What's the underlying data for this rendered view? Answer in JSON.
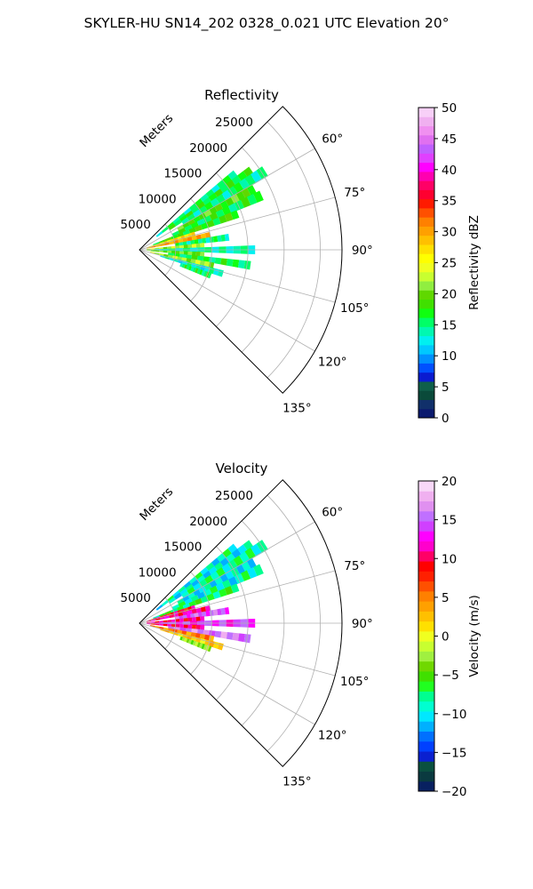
{
  "figure": {
    "title": "SKYLER-HU  SN14_202  0328_0.021 UTC Elevation 20°"
  },
  "chart_data": [
    {
      "type": "heatmap",
      "title": "Reflectivity",
      "projection": "polar sector",
      "radial_label": "Meters",
      "radial_ticks": [
        5000,
        10000,
        15000,
        20000,
        25000
      ],
      "radial_tick_labels": [
        "5000",
        "10000",
        "15000",
        "20000",
        "25000"
      ],
      "rlim": [
        0,
        28000
      ],
      "theta_ticks": [
        60,
        75,
        90,
        105,
        120,
        135
      ],
      "theta_tick_labels": [
        "60°",
        "75°",
        "90°",
        "105°",
        "120°",
        "135°"
      ],
      "theta_range_deg": [
        45,
        135
      ],
      "grid": true,
      "colorbar": {
        "label": "Reflectivity dBZ",
        "range": [
          0,
          50
        ],
        "ticks": [
          0,
          5,
          10,
          15,
          20,
          25,
          30,
          35,
          40,
          45,
          50
        ],
        "tick_labels": [
          "0",
          "5",
          "10",
          "15",
          "20",
          "25",
          "30",
          "35",
          "40",
          "45",
          "50"
        ]
      },
      "field_blobs": [
        {
          "az": 52,
          "r0": 3000,
          "r1": 17000,
          "value": 15
        },
        {
          "az": 55,
          "r0": 5000,
          "r1": 19000,
          "value": 17
        },
        {
          "az": 58,
          "r0": 7000,
          "r1": 20500,
          "value": 15
        },
        {
          "az": 62,
          "r0": 6000,
          "r1": 18000,
          "value": 19
        },
        {
          "az": 66,
          "r0": 5000,
          "r1": 18500,
          "value": 16
        },
        {
          "az": 70,
          "r0": 2000,
          "r1": 14500,
          "value": 18
        },
        {
          "az": 74,
          "r0": 1000,
          "r1": 8000,
          "value": 27
        },
        {
          "az": 78,
          "r0": 1000,
          "r1": 10000,
          "value": 30
        },
        {
          "az": 82,
          "r0": 5000,
          "r1": 12500,
          "value": 15
        },
        {
          "az": 86,
          "r0": 1000,
          "r1": 9000,
          "value": 22
        },
        {
          "az": 90,
          "r0": 2000,
          "r1": 16000,
          "value": 14
        },
        {
          "az": 94,
          "r0": 1000,
          "r1": 9000,
          "value": 20
        },
        {
          "az": 98,
          "r0": 4000,
          "r1": 15500,
          "value": 16
        },
        {
          "az": 102,
          "r0": 1500,
          "r1": 10500,
          "value": 22
        },
        {
          "az": 106,
          "r0": 3000,
          "r1": 12000,
          "value": 13
        },
        {
          "az": 110,
          "r0": 6000,
          "r1": 10500,
          "value": 16
        }
      ]
    },
    {
      "type": "heatmap",
      "title": "Velocity",
      "projection": "polar sector",
      "radial_label": "Meters",
      "radial_ticks": [
        5000,
        10000,
        15000,
        20000,
        25000
      ],
      "radial_tick_labels": [
        "5000",
        "10000",
        "15000",
        "20000",
        "25000"
      ],
      "rlim": [
        0,
        28000
      ],
      "theta_ticks": [
        60,
        75,
        90,
        105,
        120,
        135
      ],
      "theta_tick_labels": [
        "60°",
        "75°",
        "90°",
        "105°",
        "120°",
        "135°"
      ],
      "theta_range_deg": [
        45,
        135
      ],
      "grid": true,
      "colorbar": {
        "label": "Velocity (m/s)",
        "range": [
          -20,
          20
        ],
        "ticks": [
          -20,
          -15,
          -10,
          -5,
          0,
          5,
          10,
          15,
          20
        ],
        "tick_labels": [
          "−20",
          "−15",
          "−10",
          "−5",
          "0",
          "5",
          "10",
          "15",
          "20"
        ]
      },
      "field_blobs": [
        {
          "az": 52,
          "r0": 3000,
          "r1": 17000,
          "value": -9
        },
        {
          "az": 55,
          "r0": 5000,
          "r1": 19000,
          "value": -10
        },
        {
          "az": 58,
          "r0": 7000,
          "r1": 20500,
          "value": -8
        },
        {
          "az": 62,
          "r0": 6000,
          "r1": 18000,
          "value": -10
        },
        {
          "az": 66,
          "r0": 5000,
          "r1": 18500,
          "value": -9
        },
        {
          "az": 70,
          "r0": 2000,
          "r1": 14500,
          "value": -7
        },
        {
          "az": 74,
          "r0": 1000,
          "r1": 8000,
          "value": 9
        },
        {
          "az": 78,
          "r0": 1000,
          "r1": 10000,
          "value": 11
        },
        {
          "az": 82,
          "r0": 5000,
          "r1": 12500,
          "value": 15
        },
        {
          "az": 86,
          "r0": 1000,
          "r1": 9000,
          "value": 10
        },
        {
          "az": 90,
          "r0": 2000,
          "r1": 16000,
          "value": 14
        },
        {
          "az": 94,
          "r0": 1000,
          "r1": 9000,
          "value": 10
        },
        {
          "az": 98,
          "r0": 4000,
          "r1": 15500,
          "value": 16
        },
        {
          "az": 102,
          "r0": 1500,
          "r1": 10500,
          "value": 5
        },
        {
          "az": 106,
          "r0": 3000,
          "r1": 12000,
          "value": 2
        },
        {
          "az": 110,
          "r0": 6000,
          "r1": 10500,
          "value": -3
        }
      ]
    }
  ]
}
